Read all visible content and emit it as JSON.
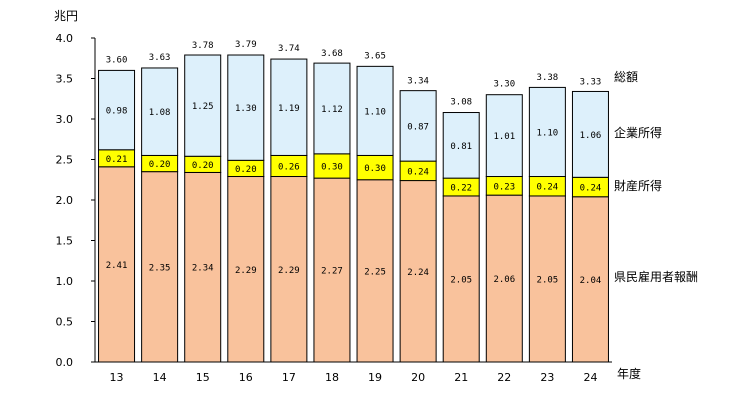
{
  "chart_data": {
    "type": "bar",
    "stacked": true,
    "ylabel": "兆円",
    "xlabel": "年度",
    "ylim": [
      0,
      4.0
    ],
    "y_ticks": [
      "0.0",
      "0.5",
      "1.0",
      "1.5",
      "2.0",
      "2.5",
      "3.0",
      "3.5",
      "4.0"
    ],
    "categories": [
      "13",
      "14",
      "15",
      "16",
      "17",
      "18",
      "19",
      "20",
      "21",
      "22",
      "23",
      "24"
    ],
    "series": [
      {
        "name": "県民雇用者報酬",
        "color": "#F9C29C",
        "values": [
          2.41,
          2.35,
          2.34,
          2.29,
          2.29,
          2.27,
          2.25,
          2.24,
          2.05,
          2.06,
          2.05,
          2.04
        ],
        "labels": [
          "2.41",
          "2.35",
          "2.34",
          "2.29",
          "2.29",
          "2.27",
          "2.25",
          "2.24",
          "2.05",
          "2.06",
          "2.05",
          "2.04"
        ]
      },
      {
        "name": "財産所得",
        "color": "#FFFF00",
        "values": [
          0.21,
          0.2,
          0.2,
          0.2,
          0.26,
          0.3,
          0.3,
          0.24,
          0.22,
          0.23,
          0.24,
          0.24
        ],
        "labels": [
          "0.21",
          "0.20",
          "0.20",
          "0.20",
          "0.26",
          "0.30",
          "0.30",
          "0.24",
          "0.22",
          "0.23",
          "0.24",
          "0.24"
        ]
      },
      {
        "name": "企業所得",
        "color": "#DDF0FB",
        "values": [
          0.98,
          1.08,
          1.25,
          1.3,
          1.19,
          1.12,
          1.1,
          0.87,
          0.81,
          1.01,
          1.1,
          1.06
        ],
        "labels": [
          "0.98",
          "1.08",
          "1.25",
          "1.30",
          "1.19",
          "1.12",
          "1.10",
          "0.87",
          "0.81",
          "1.01",
          "1.10",
          "1.06"
        ]
      }
    ],
    "totals": {
      "name": "総額",
      "values": [
        3.6,
        3.63,
        3.78,
        3.79,
        3.74,
        3.68,
        3.65,
        3.34,
        3.08,
        3.3,
        3.38,
        3.33
      ],
      "labels": [
        "3.60",
        "3.63",
        "3.78",
        "3.79",
        "3.74",
        "3.68",
        "3.65",
        "3.34",
        "3.08",
        "3.30",
        "3.38",
        "3.33"
      ]
    },
    "grid": false,
    "legend": "right, inline series labels"
  }
}
